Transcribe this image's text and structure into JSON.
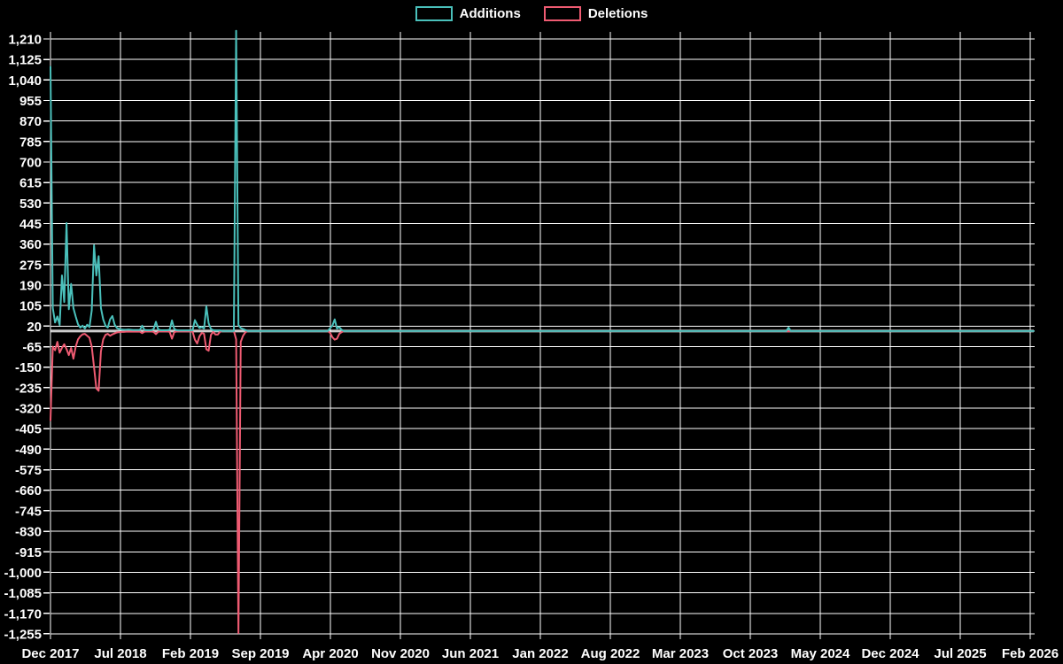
{
  "legend": {
    "items": [
      {
        "label": "Additions",
        "color": "#4ac0bb"
      },
      {
        "label": "Deletions",
        "color": "#ef5b72"
      }
    ]
  },
  "chart_data": {
    "type": "line",
    "title": "",
    "xlabel": "",
    "ylabel": "",
    "background_color": "#000000",
    "grid_color": "#ffffff",
    "text_color": "#ffffff",
    "zero_line_color": "#ffffff",
    "grid": true,
    "legend_position": "top-center",
    "x_unit": "week",
    "n_weeks": 430,
    "x_tick_labels": [
      "Dec 2017",
      "Jul 2018",
      "Feb 2019",
      "Sep 2019",
      "Apr 2020",
      "Nov 2020",
      "Jun 2021",
      "Jan 2022",
      "Aug 2022",
      "Mar 2023",
      "Oct 2023",
      "May 2024",
      "Dec 2024",
      "Jul 2025",
      "Feb 2026"
    ],
    "y_axis": {
      "max_tick": 1210,
      "min_tick": -1255,
      "step": 85
    },
    "series": [
      {
        "name": "Additions",
        "color": "#4ac0bb",
        "default_value": 0,
        "points_sparse": [
          [
            0,
            1095
          ],
          [
            1,
            95
          ],
          [
            2,
            35
          ],
          [
            3,
            60
          ],
          [
            4,
            25
          ],
          [
            5,
            230
          ],
          [
            6,
            120
          ],
          [
            7,
            447
          ],
          [
            8,
            90
          ],
          [
            9,
            195
          ],
          [
            10,
            95
          ],
          [
            11,
            60
          ],
          [
            12,
            28
          ],
          [
            13,
            14
          ],
          [
            14,
            22
          ],
          [
            15,
            10
          ],
          [
            16,
            26
          ],
          [
            17,
            16
          ],
          [
            18,
            85
          ],
          [
            19,
            355
          ],
          [
            20,
            230
          ],
          [
            21,
            310
          ],
          [
            22,
            95
          ],
          [
            23,
            48
          ],
          [
            24,
            22
          ],
          [
            25,
            14
          ],
          [
            26,
            48
          ],
          [
            27,
            62
          ],
          [
            28,
            26
          ],
          [
            29,
            12
          ],
          [
            30,
            8
          ],
          [
            31,
            6
          ],
          [
            32,
            5
          ],
          [
            33,
            5
          ],
          [
            34,
            6
          ],
          [
            35,
            5
          ],
          [
            36,
            4
          ],
          [
            37,
            4
          ],
          [
            38,
            4
          ],
          [
            39,
            4
          ],
          [
            40,
            22
          ],
          [
            41,
            4
          ],
          [
            42,
            3
          ],
          [
            43,
            3
          ],
          [
            44,
            3
          ],
          [
            45,
            8
          ],
          [
            46,
            38
          ],
          [
            47,
            6
          ],
          [
            48,
            3
          ],
          [
            49,
            3
          ],
          [
            50,
            3
          ],
          [
            51,
            3
          ],
          [
            52,
            5
          ],
          [
            53,
            44
          ],
          [
            54,
            8
          ],
          [
            55,
            3
          ],
          [
            56,
            2
          ],
          [
            57,
            2
          ],
          [
            58,
            2
          ],
          [
            59,
            2
          ],
          [
            60,
            2
          ],
          [
            61,
            2
          ],
          [
            62,
            3
          ],
          [
            63,
            45
          ],
          [
            64,
            26
          ],
          [
            65,
            12
          ],
          [
            66,
            16
          ],
          [
            67,
            10
          ],
          [
            68,
            102
          ],
          [
            69,
            32
          ],
          [
            70,
            8
          ],
          [
            71,
            3
          ],
          [
            72,
            2
          ],
          [
            73,
            2
          ],
          [
            74,
            2
          ],
          [
            81,
            1244
          ],
          [
            82,
            25
          ],
          [
            83,
            12
          ],
          [
            84,
            8
          ],
          [
            85,
            4
          ],
          [
            122,
            12
          ],
          [
            123,
            22
          ],
          [
            124,
            48
          ],
          [
            125,
            10
          ],
          [
            126,
            16
          ],
          [
            127,
            5
          ],
          [
            322,
            14
          ]
        ]
      },
      {
        "name": "Deletions",
        "color": "#ef5b72",
        "default_value": 0,
        "points_sparse": [
          [
            0,
            -370
          ],
          [
            1,
            -65
          ],
          [
            2,
            -80
          ],
          [
            3,
            -45
          ],
          [
            4,
            -90
          ],
          [
            5,
            -70
          ],
          [
            6,
            -55
          ],
          [
            7,
            -75
          ],
          [
            8,
            -100
          ],
          [
            9,
            -70
          ],
          [
            10,
            -115
          ],
          [
            11,
            -65
          ],
          [
            12,
            -35
          ],
          [
            13,
            -22
          ],
          [
            14,
            -14
          ],
          [
            15,
            -12
          ],
          [
            16,
            -20
          ],
          [
            17,
            -28
          ],
          [
            18,
            -65
          ],
          [
            19,
            -150
          ],
          [
            20,
            -238
          ],
          [
            21,
            -248
          ],
          [
            22,
            -85
          ],
          [
            23,
            -35
          ],
          [
            24,
            -16
          ],
          [
            25,
            -12
          ],
          [
            26,
            -20
          ],
          [
            27,
            -14
          ],
          [
            28,
            -10
          ],
          [
            29,
            -6
          ],
          [
            30,
            -5
          ],
          [
            31,
            -4
          ],
          [
            32,
            -4
          ],
          [
            33,
            -3
          ],
          [
            34,
            -3
          ],
          [
            35,
            -3
          ],
          [
            36,
            -3
          ],
          [
            37,
            -3
          ],
          [
            38,
            -3
          ],
          [
            39,
            -3
          ],
          [
            40,
            -9
          ],
          [
            41,
            -3
          ],
          [
            42,
            -2
          ],
          [
            43,
            -2
          ],
          [
            44,
            -2
          ],
          [
            45,
            -4
          ],
          [
            46,
            -13
          ],
          [
            47,
            -3
          ],
          [
            48,
            -2
          ],
          [
            49,
            -2
          ],
          [
            50,
            -2
          ],
          [
            51,
            -2
          ],
          [
            52,
            -4
          ],
          [
            53,
            -32
          ],
          [
            54,
            -5
          ],
          [
            55,
            -2
          ],
          [
            56,
            -2
          ],
          [
            57,
            -2
          ],
          [
            58,
            -2
          ],
          [
            59,
            -2
          ],
          [
            60,
            -2
          ],
          [
            61,
            -2
          ],
          [
            62,
            -3
          ],
          [
            63,
            -36
          ],
          [
            64,
            -52
          ],
          [
            65,
            -22
          ],
          [
            66,
            -8
          ],
          [
            67,
            -12
          ],
          [
            68,
            -76
          ],
          [
            69,
            -82
          ],
          [
            70,
            -16
          ],
          [
            71,
            -4
          ],
          [
            72,
            -15
          ],
          [
            73,
            -15
          ],
          [
            74,
            -3
          ],
          [
            81,
            -35
          ],
          [
            82,
            -1252
          ],
          [
            83,
            -45
          ],
          [
            84,
            -20
          ],
          [
            85,
            -6
          ],
          [
            122,
            -8
          ],
          [
            123,
            -26
          ],
          [
            124,
            -36
          ],
          [
            125,
            -32
          ],
          [
            126,
            -12
          ],
          [
            127,
            -5
          ],
          [
            322,
            -2
          ]
        ]
      }
    ]
  }
}
